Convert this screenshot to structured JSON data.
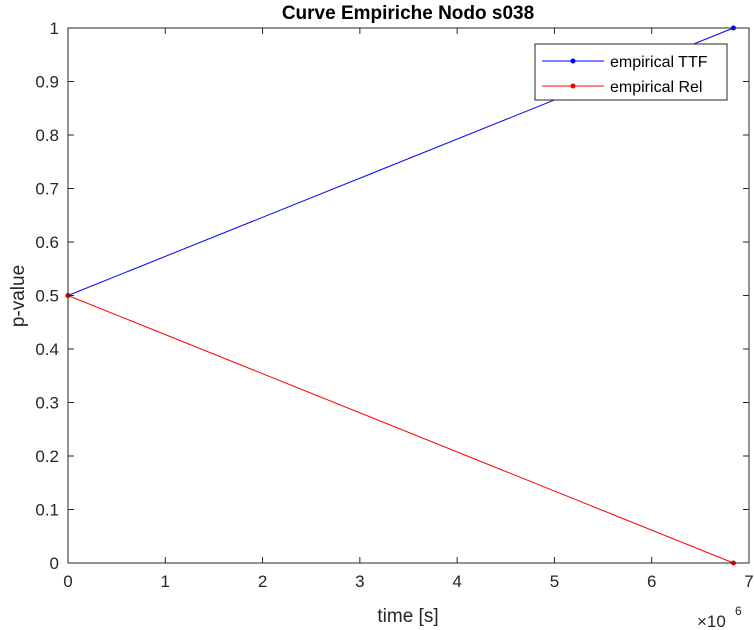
{
  "chart_data": {
    "type": "line",
    "title": "Curve Empiriche Nodo s038",
    "xlabel": "time [s]",
    "ylabel": "p-value",
    "x_exponent_base": "×10",
    "x_exponent_power": "6",
    "xlim": [
      0,
      7
    ],
    "ylim": [
      0,
      1
    ],
    "xticks": [
      0,
      1,
      2,
      3,
      4,
      5,
      6,
      7
    ],
    "yticks": [
      0,
      0.1,
      0.2,
      0.3,
      0.4,
      0.5,
      0.6,
      0.7,
      0.8,
      0.9,
      1
    ],
    "xtick_labels": [
      "0",
      "1",
      "2",
      "3",
      "4",
      "5",
      "6",
      "7"
    ],
    "ytick_labels": [
      "0",
      "0.1",
      "0.2",
      "0.3",
      "0.4",
      "0.5",
      "0.6",
      "0.7",
      "0.8",
      "0.9",
      "1"
    ],
    "grid": false,
    "legend_position": "top-right",
    "series": [
      {
        "name": "empirical TTF",
        "color": "#0000ff",
        "x": [
          0,
          6.84
        ],
        "y": [
          0.5,
          1.0
        ]
      },
      {
        "name": "empirical Rel",
        "color": "#ff0000",
        "x": [
          0,
          6.84
        ],
        "y": [
          0.5,
          0.0
        ]
      }
    ]
  }
}
